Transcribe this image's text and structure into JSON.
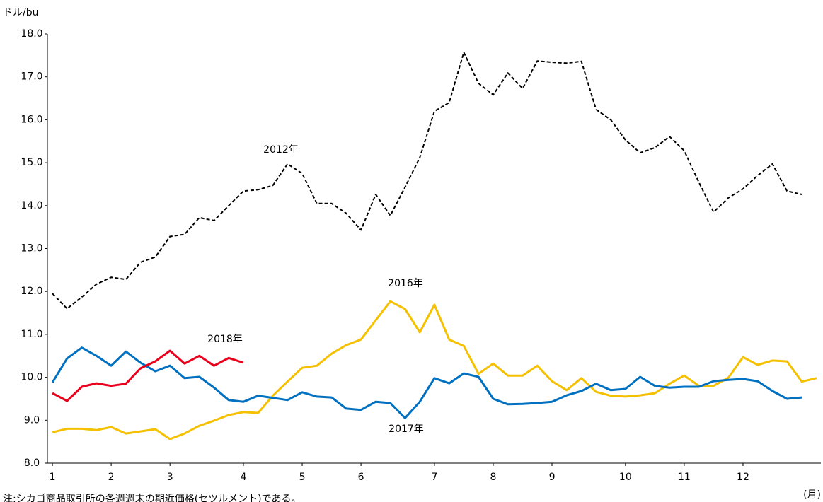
{
  "chart_data": {
    "type": "line",
    "y_label": "ドル/bu",
    "x_label": "(月)",
    "note": "注:シカゴ商品取引所の各週週末の期近価格(セツルメント)である。",
    "annotations": [
      "2012年",
      "2016年",
      "2017年",
      "2018年"
    ],
    "x": [
      0,
      1,
      2,
      3,
      4,
      5,
      6,
      7,
      8,
      9,
      10,
      11,
      12,
      13,
      14,
      15,
      16,
      17,
      18,
      19,
      20,
      21,
      22,
      23,
      24,
      25,
      26,
      27,
      28,
      29,
      30,
      31,
      32,
      33,
      34,
      35,
      36,
      37,
      38,
      39,
      40,
      41,
      42,
      43,
      44,
      45,
      46,
      47,
      48,
      49,
      50,
      51,
      52
    ],
    "xlim": [
      -0.34,
      52.3
    ],
    "xticks": [
      {
        "value": 0,
        "label": "1"
      },
      {
        "value": 4,
        "label": "2"
      },
      {
        "value": 8,
        "label": "3"
      },
      {
        "value": 13,
        "label": "4"
      },
      {
        "value": 17,
        "label": "5"
      },
      {
        "value": 21,
        "label": "6"
      },
      {
        "value": 26,
        "label": "7"
      },
      {
        "value": 30,
        "label": "8"
      },
      {
        "value": 34,
        "label": "9"
      },
      {
        "value": 39,
        "label": "10"
      },
      {
        "value": 43,
        "label": "11"
      },
      {
        "value": 47,
        "label": "12"
      }
    ],
    "ylim": [
      8,
      18
    ],
    "yticks": [
      {
        "value": 8,
        "label": "8.0"
      },
      {
        "value": 9,
        "label": "9.0"
      },
      {
        "value": 10,
        "label": "10.0"
      },
      {
        "value": 11,
        "label": "11.0"
      },
      {
        "value": 12,
        "label": "12.0"
      },
      {
        "value": 13,
        "label": "13.0"
      },
      {
        "value": 14,
        "label": "14.0"
      },
      {
        "value": 15,
        "label": "15.0"
      },
      {
        "value": 16,
        "label": "16.0"
      },
      {
        "value": 17,
        "label": "17.0"
      },
      {
        "value": 18,
        "label": "18.0"
      }
    ],
    "series": [
      {
        "name": "2012年",
        "color": "#000000",
        "dashed": true,
        "values": [
          11.95,
          11.6,
          11.87,
          12.17,
          12.33,
          12.28,
          12.68,
          12.8,
          13.28,
          13.33,
          13.72,
          13.65,
          14.0,
          14.34,
          14.37,
          14.47,
          14.97,
          14.75,
          14.05,
          14.05,
          13.82,
          13.43,
          14.26,
          13.77,
          14.43,
          15.12,
          16.2,
          16.4,
          17.57,
          16.85,
          16.58,
          17.09,
          16.73,
          17.37,
          17.34,
          17.32,
          17.36,
          16.24,
          16.0,
          15.53,
          15.23,
          15.35,
          15.61,
          15.28,
          14.54,
          13.85,
          14.18,
          14.39,
          14.7,
          14.97,
          14.34,
          14.26,
          null
        ]
      },
      {
        "name": "2016年",
        "color": "#f5c000",
        "dashed": false,
        "values": [
          8.72,
          8.8,
          8.8,
          8.77,
          8.84,
          8.69,
          8.74,
          8.79,
          8.56,
          8.69,
          8.87,
          8.99,
          9.12,
          9.19,
          9.17,
          9.57,
          9.9,
          10.22,
          10.27,
          10.55,
          10.75,
          10.88,
          11.33,
          11.77,
          11.59,
          11.05,
          11.69,
          10.88,
          10.73,
          10.08,
          10.32,
          10.04,
          10.04,
          10.27,
          9.91,
          9.7,
          9.98,
          9.66,
          9.57,
          9.55,
          9.58,
          9.63,
          9.85,
          10.04,
          9.8,
          9.8,
          9.99,
          10.47,
          10.29,
          10.39,
          10.37,
          9.9,
          9.98
        ]
      },
      {
        "name": "2017年",
        "color": "#0070c0",
        "dashed": false,
        "values": [
          9.88,
          10.44,
          10.69,
          10.5,
          10.27,
          10.6,
          10.34,
          10.14,
          10.27,
          9.98,
          10.01,
          9.76,
          9.47,
          9.43,
          9.57,
          9.52,
          9.47,
          9.65,
          9.55,
          9.53,
          9.27,
          9.24,
          9.43,
          9.4,
          9.05,
          9.43,
          9.98,
          9.86,
          10.09,
          10.01,
          9.5,
          9.37,
          9.38,
          9.4,
          9.43,
          9.58,
          9.68,
          9.85,
          9.7,
          9.73,
          10.01,
          9.8,
          9.76,
          9.78,
          9.78,
          9.91,
          9.94,
          9.96,
          9.91,
          9.68,
          9.5,
          9.53,
          null
        ]
      },
      {
        "name": "2018年",
        "color": "#e8001c",
        "dashed": false,
        "values": [
          9.63,
          9.45,
          9.78,
          9.86,
          9.8,
          9.85,
          10.21,
          10.37,
          10.62,
          10.32,
          10.5,
          10.27,
          10.45,
          10.34,
          null,
          null,
          null,
          null,
          null,
          null,
          null,
          null,
          null,
          null,
          null,
          null,
          null,
          null,
          null,
          null,
          null,
          null,
          null,
          null,
          null,
          null,
          null,
          null,
          null,
          null,
          null,
          null,
          null,
          null,
          null,
          null,
          null,
          null,
          null,
          null,
          null,
          null,
          null
        ]
      }
    ]
  }
}
